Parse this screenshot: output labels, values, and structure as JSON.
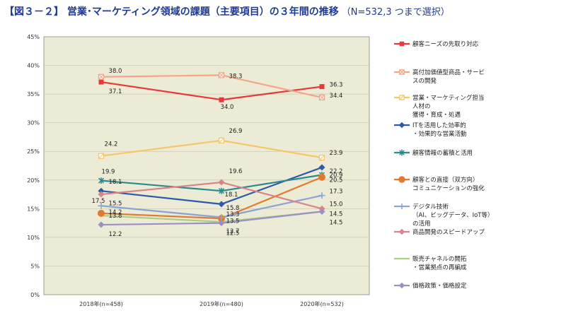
{
  "title": "【図３－２】 営業･マーケティング領域の課題（主要項目）の３年間の推移",
  "subtitle": "（N=532,3 つまで選択）",
  "chart_data": {
    "type": "line",
    "categories": [
      "2018年(n=458)",
      "2019年(n=480)",
      "2020年(n=532)"
    ],
    "y_ticks": [
      "0%",
      "5%",
      "10%",
      "15%",
      "20%",
      "25%",
      "30%",
      "35%",
      "40%",
      "45%"
    ],
    "ylim": [
      0,
      45
    ],
    "grid": true,
    "plot_background": "#ecebd6",
    "legend_position": "right",
    "series": [
      {
        "name": "顧客ニーズの先取り対応",
        "legend_lines": [
          "顧客ニーズの先取り対応"
        ],
        "values": [
          37.1,
          34.0,
          36.3
        ],
        "labels": [
          "37.1",
          "34.0",
          "36.3"
        ],
        "color": "#e8383d",
        "marker": "square"
      },
      {
        "name": "高付加価値型商品・サービスの開発",
        "legend_lines": [
          "高付加価値型商品・サービ",
          "スの開発"
        ],
        "values": [
          38.0,
          38.3,
          34.4
        ],
        "labels": [
          "38.0",
          "38.3",
          "34.4"
        ],
        "color": "#f4a58a",
        "marker": "square-x"
      },
      {
        "name": "営業・マーケティング担当人材の獲得・育成・処遇",
        "legend_lines": [
          "営業・マーケティング担当",
          "人材の",
          "獲得・育成・処遇"
        ],
        "values": [
          24.2,
          26.9,
          23.9
        ],
        "labels": [
          "24.2",
          "26.9",
          "23.9"
        ],
        "color": "#f9c56b",
        "marker": "square-slash"
      },
      {
        "name": "ITを活用した効率的・効果的な営業活動",
        "legend_lines": [
          "ITを活用した効率的",
          "・効果的な営業活動"
        ],
        "values": [
          18.1,
          15.8,
          22.2
        ],
        "labels": [
          "18.1",
          "15.8",
          "22.2"
        ],
        "color": "#2e5aa8",
        "marker": "diamond"
      },
      {
        "name": "顧客情報の蓄積と活用",
        "legend_lines": [
          "顧客情報の蓄積と活用"
        ],
        "values": [
          19.9,
          18.1,
          20.9
        ],
        "labels": [
          "19.9",
          "18.1",
          "20.9"
        ],
        "color": "#2a8b8e",
        "marker": "star"
      },
      {
        "name": "顧客との直接（双方向）コミュニケーションの強化",
        "legend_lines": [
          "顧客との直接（双方向）",
          "コミュニケーションの強化"
        ],
        "values": [
          14.2,
          13.3,
          20.5
        ],
        "labels": [
          "14.2",
          "13.3",
          "20.5"
        ],
        "color": "#e07b30",
        "marker": "circle"
      },
      {
        "name": "デジタル技術（AI、ビッグデータ、IoT等）の活用",
        "legend_lines": [
          "デジタル技術",
          "（AI、ビッグデータ、IoT等）",
          "の活用"
        ],
        "values": [
          15.5,
          13.5,
          17.3
        ],
        "labels": [
          "15.5",
          "13.5",
          "17.3"
        ],
        "color": "#8aa2d4",
        "marker": "plus"
      },
      {
        "name": "商品開発のスピードアップ",
        "legend_lines": [
          "商品開発のスピードアップ"
        ],
        "values": [
          17.5,
          19.6,
          15.0
        ],
        "labels": [
          "17.5",
          "19.6",
          "15.0"
        ],
        "color": "#d9838a",
        "marker": "diamond"
      },
      {
        "name": "販売チャネルの開拓・営業拠点の再編成",
        "legend_lines": [
          "販売チャネルの開拓",
          "・営業拠点の再編成"
        ],
        "values": [
          13.8,
          12.7,
          14.5
        ],
        "labels": [
          "13.8",
          "12.7",
          "14.5"
        ],
        "color": "#a9cf85",
        "marker": "none"
      },
      {
        "name": "価格政策・価格設定",
        "legend_lines": [
          "価格政策・価格設定"
        ],
        "values": [
          12.2,
          12.5,
          14.5
        ],
        "labels": [
          "12.2",
          "12.5",
          "14.5"
        ],
        "color": "#9b8fc4",
        "marker": "diamond"
      }
    ]
  }
}
